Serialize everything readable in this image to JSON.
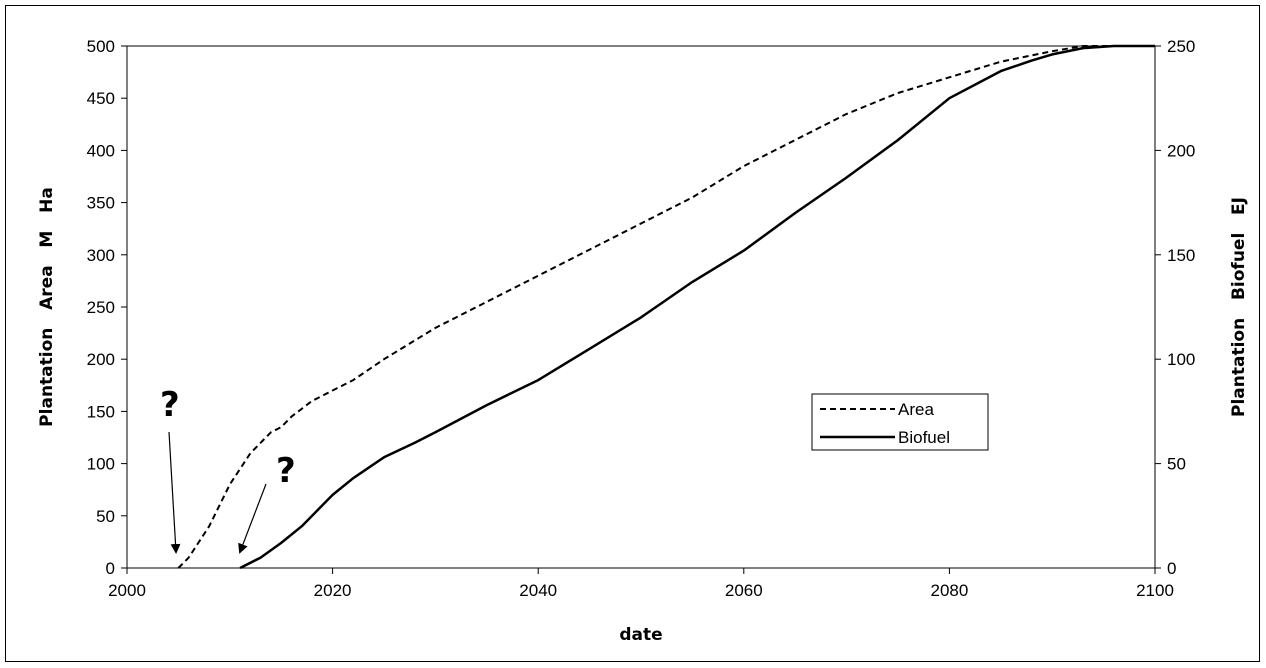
{
  "chart_data": {
    "type": "line",
    "xlabel": "date",
    "ylabel_left": "Plantation   Area   M   Ha",
    "ylabel_right": "Plantation   Biofuel   EJ",
    "xlim": [
      2000,
      2100
    ],
    "ylim_left": [
      0,
      500
    ],
    "ylim_right": [
      0,
      250
    ],
    "x_ticks": [
      "2000",
      "2020",
      "2040",
      "2060",
      "2080",
      "2100"
    ],
    "y_left_ticks": [
      "0",
      "50",
      "100",
      "150",
      "200",
      "250",
      "300",
      "350",
      "400",
      "450",
      "500"
    ],
    "y_right_ticks": [
      "0",
      "50",
      "100",
      "150",
      "200",
      "250"
    ],
    "grid": false,
    "legend_position": "center-right",
    "annotations": [
      "?",
      "?"
    ],
    "series": [
      {
        "name": "Area",
        "axis": "left",
        "style": "dashed",
        "color": "#000000",
        "x": [
          2005,
          2006,
          2008,
          2010,
          2012,
          2014,
          2015,
          2016,
          2018,
          2020,
          2022,
          2025,
          2030,
          2035,
          2040,
          2045,
          2050,
          2055,
          2060,
          2065,
          2070,
          2075,
          2080,
          2085,
          2090,
          2093,
          2096,
          2100
        ],
        "values": [
          0,
          10,
          40,
          80,
          110,
          130,
          135,
          145,
          160,
          170,
          180,
          200,
          230,
          255,
          280,
          305,
          330,
          355,
          385,
          410,
          435,
          455,
          470,
          485,
          495,
          500,
          500,
          500
        ]
      },
      {
        "name": "Biofuel",
        "axis": "right",
        "style": "solid",
        "color": "#000000",
        "x": [
          2011,
          2013,
          2015,
          2017,
          2020,
          2022,
          2025,
          2028,
          2030,
          2035,
          2040,
          2045,
          2050,
          2055,
          2060,
          2065,
          2070,
          2075,
          2080,
          2085,
          2088,
          2090,
          2093,
          2096,
          2100
        ],
        "values": [
          0,
          5,
          12,
          20,
          35,
          43,
          53,
          60,
          65,
          78,
          90,
          105,
          120,
          137,
          152,
          170,
          187,
          205,
          225,
          238,
          243,
          246,
          249,
          250,
          250
        ]
      }
    ]
  }
}
